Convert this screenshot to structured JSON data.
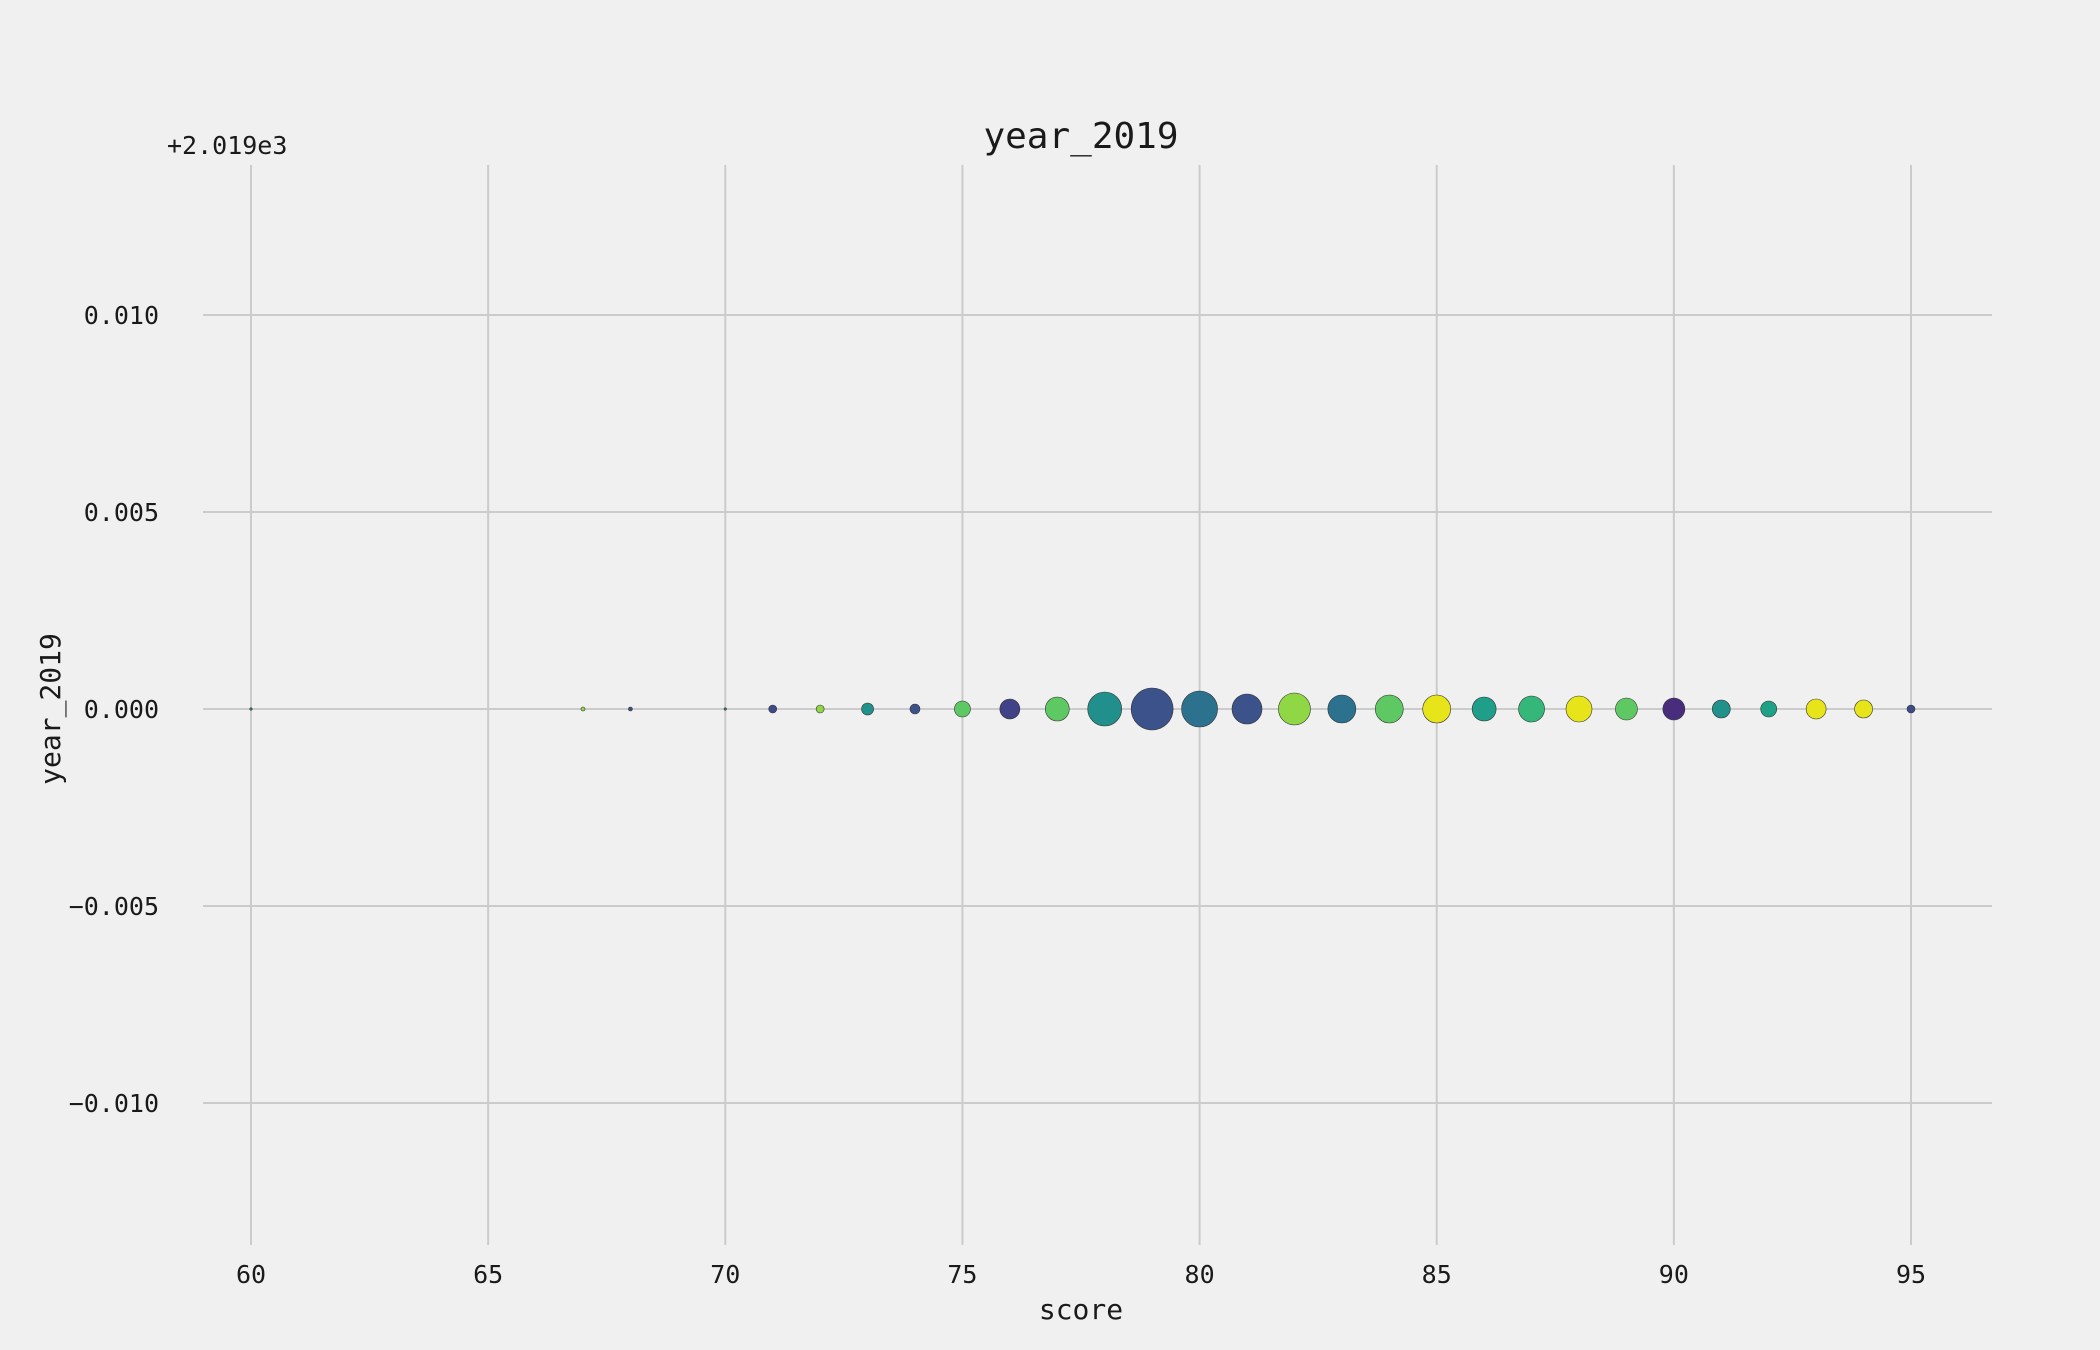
{
  "chart_data": {
    "type": "scatter",
    "title": "year_2019",
    "xlabel": "score",
    "ylabel": "year_2019",
    "y_offset_text": "+2.019e3",
    "xlim": [
      58.4,
      96.7
    ],
    "ylim": [
      -0.0138,
      0.0138
    ],
    "x_ticks": [
      60,
      65,
      70,
      75,
      80,
      85,
      90,
      95
    ],
    "y_ticks": [
      0.01,
      0.005,
      0.0,
      -0.005,
      -0.01
    ],
    "y_tick_labels": [
      "0.010",
      "0.005",
      "0.000",
      "−0.005",
      "−0.010"
    ],
    "grid": true,
    "legend": "none",
    "points": [
      {
        "x": 60,
        "y": 2019,
        "size": 1,
        "color": "#21918c"
      },
      {
        "x": 67,
        "y": 2019,
        "size": 2,
        "color": "#8fd744"
      },
      {
        "x": 68,
        "y": 2019,
        "size": 2,
        "color": "#3b528b"
      },
      {
        "x": 70,
        "y": 2019,
        "size": 1,
        "color": "#21918c"
      },
      {
        "x": 71,
        "y": 2019,
        "size": 4,
        "color": "#3e4a89"
      },
      {
        "x": 72,
        "y": 2019,
        "size": 4,
        "color": "#8fd744"
      },
      {
        "x": 73,
        "y": 2019,
        "size": 6,
        "color": "#21918c"
      },
      {
        "x": 74,
        "y": 2019,
        "size": 5,
        "color": "#3b528b"
      },
      {
        "x": 75,
        "y": 2019,
        "size": 8,
        "color": "#5ec962"
      },
      {
        "x": 76,
        "y": 2019,
        "size": 10,
        "color": "#404387"
      },
      {
        "x": 77,
        "y": 2019,
        "size": 12,
        "color": "#5ec962"
      },
      {
        "x": 78,
        "y": 2019,
        "size": 17,
        "color": "#21908d"
      },
      {
        "x": 79,
        "y": 2019,
        "size": 21,
        "color": "#3b528b"
      },
      {
        "x": 80,
        "y": 2019,
        "size": 18,
        "color": "#2c728e"
      },
      {
        "x": 81,
        "y": 2019,
        "size": 15,
        "color": "#3b528b"
      },
      {
        "x": 82,
        "y": 2019,
        "size": 16,
        "color": "#8fd744"
      },
      {
        "x": 83,
        "y": 2019,
        "size": 14,
        "color": "#2c728e"
      },
      {
        "x": 84,
        "y": 2019,
        "size": 14,
        "color": "#5ec962"
      },
      {
        "x": 85,
        "y": 2019,
        "size": 14,
        "color": "#e7e419"
      },
      {
        "x": 86,
        "y": 2019,
        "size": 12,
        "color": "#1f9e89"
      },
      {
        "x": 87,
        "y": 2019,
        "size": 13,
        "color": "#35b779"
      },
      {
        "x": 88,
        "y": 2019,
        "size": 13,
        "color": "#e7e419"
      },
      {
        "x": 89,
        "y": 2019,
        "size": 11,
        "color": "#5ec962"
      },
      {
        "x": 90,
        "y": 2019,
        "size": 11,
        "color": "#472d7b"
      },
      {
        "x": 91,
        "y": 2019,
        "size": 9,
        "color": "#21918c"
      },
      {
        "x": 92,
        "y": 2019,
        "size": 8,
        "color": "#1fa187"
      },
      {
        "x": 93,
        "y": 2019,
        "size": 10,
        "color": "#e7e419"
      },
      {
        "x": 94,
        "y": 2019,
        "size": 9,
        "color": "#e7e419"
      },
      {
        "x": 95,
        "y": 2019,
        "size": 4,
        "color": "#3e4a89"
      }
    ]
  }
}
